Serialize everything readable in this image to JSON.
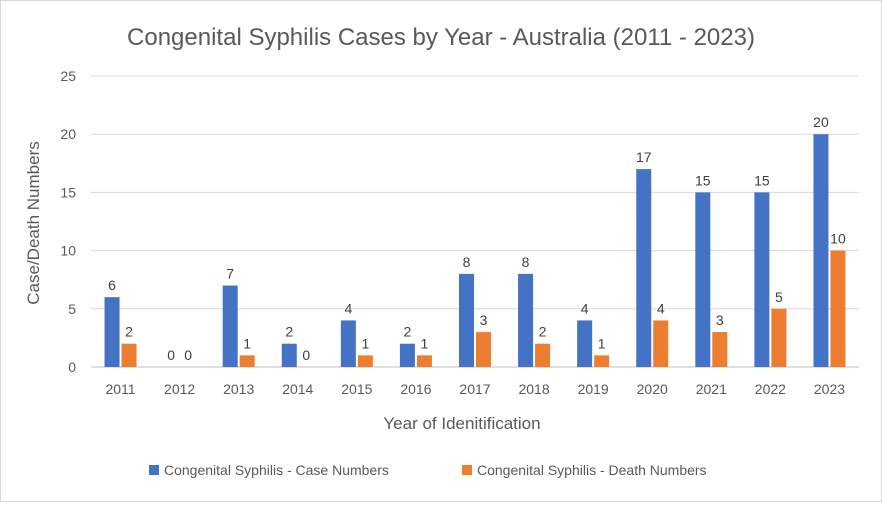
{
  "chart_data": {
    "type": "bar",
    "title": "Congenital Syphilis Cases by Year - Australia (2011 - 2023)",
    "xlabel": "Year of Idenitification",
    "ylabel": "Case/Death Numbers",
    "ylim": [
      0,
      25
    ],
    "yticks": [
      0,
      5,
      10,
      15,
      20,
      25
    ],
    "grid": true,
    "legend_position": "bottom",
    "categories": [
      "2011",
      "2012",
      "2013",
      "2014",
      "2015",
      "2016",
      "2017",
      "2018",
      "2019",
      "2020",
      "2021",
      "2022",
      "2023"
    ],
    "series": [
      {
        "name": "Congenital Syphilis - Case Numbers",
        "color": "#4472c4",
        "values": [
          6,
          0,
          7,
          2,
          4,
          2,
          8,
          8,
          4,
          17,
          15,
          15,
          20
        ]
      },
      {
        "name": "Congenital Syphilis - Death Numbers",
        "color": "#ed7d31",
        "values": [
          2,
          0,
          1,
          0,
          1,
          1,
          3,
          2,
          1,
          4,
          3,
          5,
          10
        ]
      }
    ]
  }
}
